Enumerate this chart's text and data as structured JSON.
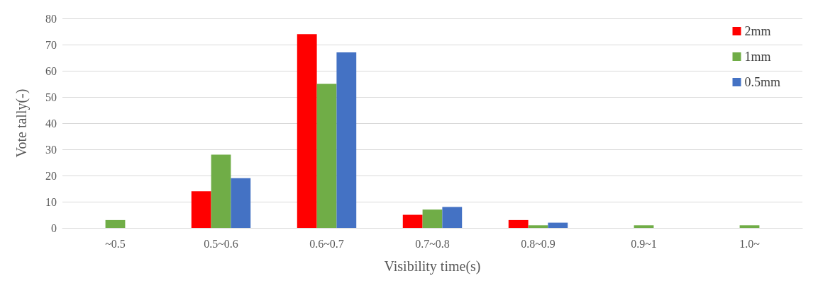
{
  "chart_data": {
    "type": "bar",
    "xlabel": "Visibility time(s)",
    "ylabel": "Vote tally(-)",
    "categories": [
      "~0.5",
      "0.5~0.6",
      "0.6~0.7",
      "0.7~0.8",
      "0.8~0.9",
      "0.9~1",
      "1.0~"
    ],
    "series": [
      {
        "name": "2mm",
        "color": "#ff0000",
        "values": [
          0,
          14,
          74,
          5,
          3,
          0,
          0
        ]
      },
      {
        "name": "1mm",
        "color": "#70ad47",
        "values": [
          3,
          28,
          55,
          7,
          1,
          1,
          1
        ]
      },
      {
        "name": "0.5mm",
        "color": "#4472c4",
        "values": [
          0,
          19,
          67,
          8,
          2,
          0,
          0
        ]
      }
    ],
    "ylim": [
      0,
      80
    ],
    "yticks": [
      0,
      10,
      20,
      30,
      40,
      50,
      60,
      70,
      80
    ],
    "grid": "y",
    "legend": "top right"
  }
}
